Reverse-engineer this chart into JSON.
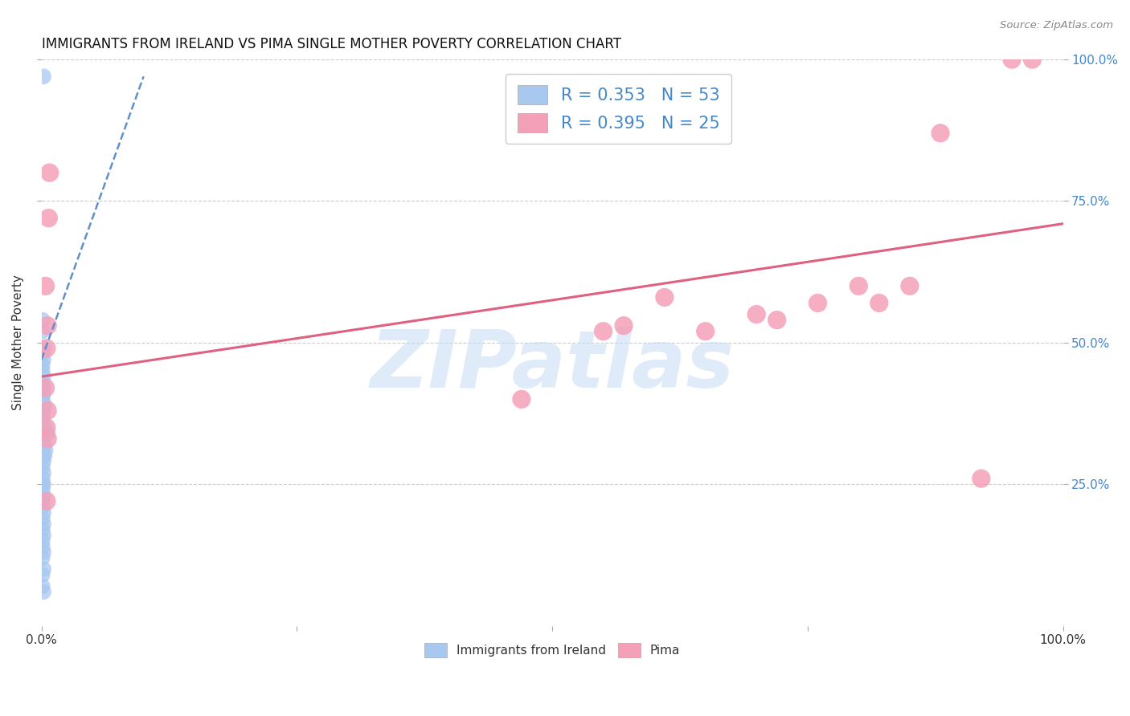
{
  "title": "IMMIGRANTS FROM IRELAND VS PIMA SINGLE MOTHER POVERTY CORRELATION CHART",
  "source": "Source: ZipAtlas.com",
  "ylabel": "Single Mother Poverty",
  "xlim": [
    0,
    1
  ],
  "ylim": [
    0,
    1
  ],
  "legend_r1": "R = 0.353",
  "legend_n1": "N = 53",
  "legend_r2": "R = 0.395",
  "legend_n2": "N = 25",
  "blue_color": "#A8C8F0",
  "pink_color": "#F4A0B8",
  "blue_line_color": "#6090CC",
  "pink_line_color": "#E06080",
  "watermark_text": "ZIPatlas",
  "grid_color": "#CCCCCC",
  "background_color": "#FFFFFF",
  "blue_x": [
    0.002,
    0.001,
    0.001,
    0.002,
    0.001,
    0.002,
    0.001,
    0.001,
    0.002,
    0.001,
    0.002,
    0.001,
    0.002,
    0.001,
    0.003,
    0.001,
    0.002,
    0.001,
    0.002,
    0.001,
    0.002,
    0.001,
    0.001,
    0.002,
    0.001,
    0.001,
    0.002,
    0.001,
    0.002,
    0.001,
    0.001,
    0.002,
    0.001,
    0.002,
    0.001,
    0.001,
    0.002,
    0.001,
    0.002,
    0.001,
    0.002,
    0.001,
    0.001,
    0.002,
    0.001,
    0.002,
    0.001,
    0.001,
    0.002,
    0.003,
    0.004,
    0.003,
    0.006
  ],
  "blue_y": [
    0.97,
    0.54,
    0.52,
    0.49,
    0.48,
    0.47,
    0.46,
    0.45,
    0.44,
    0.43,
    0.42,
    0.41,
    0.41,
    0.4,
    0.39,
    0.38,
    0.38,
    0.37,
    0.36,
    0.35,
    0.35,
    0.34,
    0.33,
    0.32,
    0.31,
    0.3,
    0.29,
    0.28,
    0.27,
    0.26,
    0.25,
    0.25,
    0.24,
    0.23,
    0.22,
    0.21,
    0.2,
    0.19,
    0.18,
    0.17,
    0.16,
    0.15,
    0.14,
    0.13,
    0.12,
    0.1,
    0.09,
    0.07,
    0.06,
    0.32,
    0.31,
    0.3,
    0.34
  ],
  "pink_x": [
    0.004,
    0.008,
    0.007,
    0.006,
    0.005,
    0.004,
    0.006,
    0.005,
    0.006,
    0.005,
    0.47,
    0.55,
    0.57,
    0.61,
    0.65,
    0.7,
    0.72,
    0.76,
    0.8,
    0.82,
    0.85,
    0.88,
    0.92,
    0.95,
    0.97
  ],
  "pink_y": [
    0.6,
    0.8,
    0.72,
    0.53,
    0.49,
    0.42,
    0.38,
    0.35,
    0.33,
    0.22,
    0.4,
    0.52,
    0.53,
    0.58,
    0.52,
    0.55,
    0.54,
    0.57,
    0.6,
    0.57,
    0.6,
    0.87,
    0.26,
    1.0,
    1.0
  ],
  "blue_trend_x": [
    0.0,
    0.1
  ],
  "blue_trend_y": [
    0.47,
    0.97
  ],
  "pink_trend_x": [
    0.0,
    1.0
  ],
  "pink_trend_y": [
    0.44,
    0.71
  ]
}
